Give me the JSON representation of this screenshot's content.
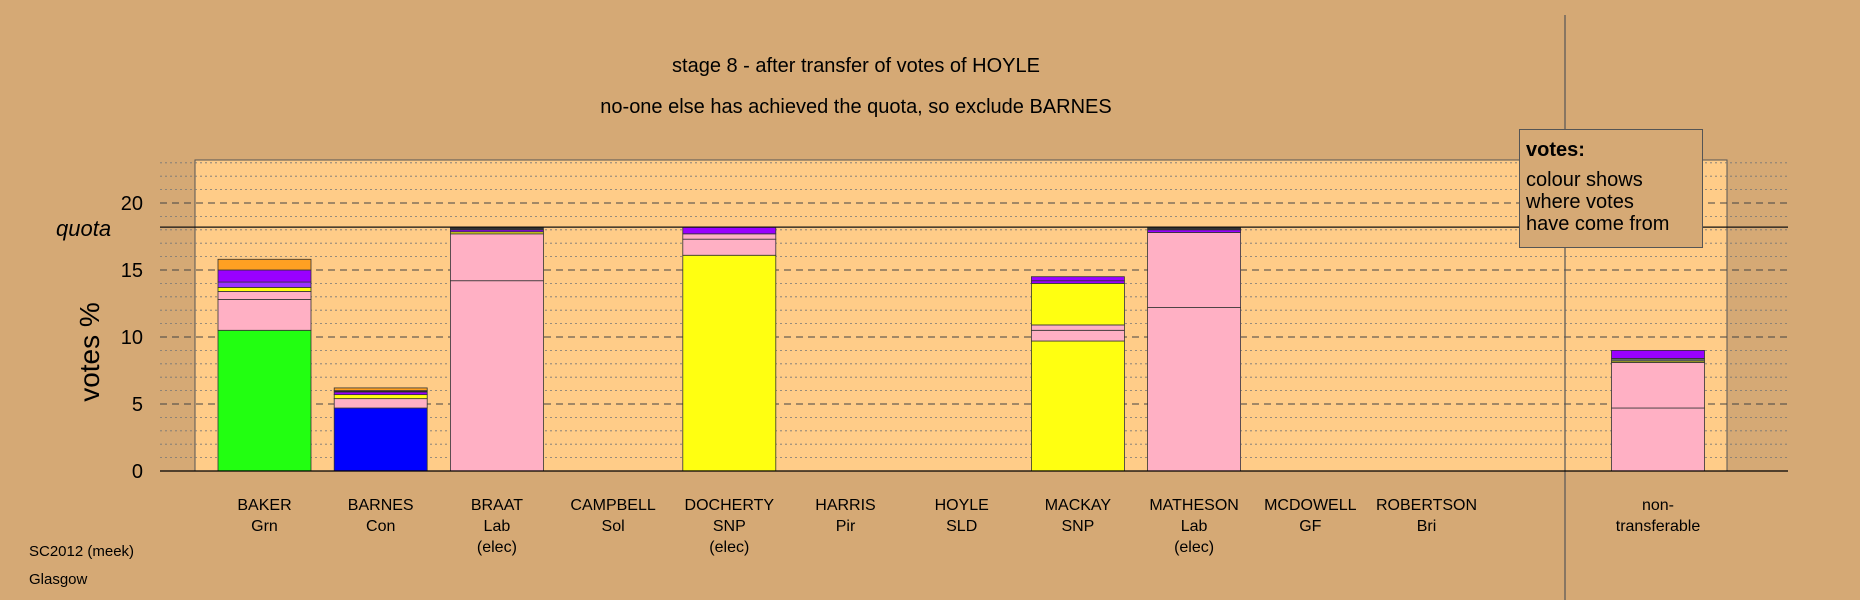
{
  "chart_data": {
    "type": "bar",
    "stacked": true,
    "title": "stage 8 - after transfer of votes of HOYLE",
    "subtitle": "no-one else has achieved the quota, so exclude BARNES",
    "ylabel": "votes %",
    "ylim": [
      0,
      23
    ],
    "yticks": [
      0,
      5,
      10,
      15,
      20
    ],
    "quota": 18.2,
    "quota_label": "quota",
    "categories": [
      {
        "name": "BAKER",
        "party": "Grn",
        "note": ""
      },
      {
        "name": "BARNES",
        "party": "Con",
        "note": ""
      },
      {
        "name": "BRAAT",
        "party": "Lab",
        "note": "(elec)"
      },
      {
        "name": "CAMPBELL",
        "party": "Sol",
        "note": ""
      },
      {
        "name": "DOCHERTY",
        "party": "SNP",
        "note": "(elec)"
      },
      {
        "name": "HARRIS",
        "party": "Pir",
        "note": ""
      },
      {
        "name": "HOYLE",
        "party": "SLD",
        "note": ""
      },
      {
        "name": "MACKAY",
        "party": "SNP",
        "note": ""
      },
      {
        "name": "MATHESON",
        "party": "Lab",
        "note": "(elec)"
      },
      {
        "name": "MCDOWELL",
        "party": "GF",
        "note": ""
      },
      {
        "name": "ROBERTSON",
        "party": "Bri",
        "note": ""
      },
      {
        "name": "non-",
        "party": "transferable",
        "note": ""
      }
    ],
    "stacks": [
      [
        {
          "v": 10.5,
          "color": "#22ff11"
        },
        {
          "v": 2.3,
          "color": "#ffb0c4"
        },
        {
          "v": 0.6,
          "color": "#ffb0c4"
        },
        {
          "v": 0.3,
          "color": "#ffff11"
        },
        {
          "v": 0.4,
          "color": "#9933ff"
        },
        {
          "v": 0.9,
          "color": "#9900ff"
        },
        {
          "v": 0.8,
          "color": "#ffa022"
        }
      ],
      [
        {
          "v": 4.7,
          "color": "#0000ff"
        },
        {
          "v": 0.7,
          "color": "#ffb0c4"
        },
        {
          "v": 0.3,
          "color": "#ffff11"
        },
        {
          "v": 0.2,
          "color": "#9900ff"
        },
        {
          "v": 0.1,
          "color": "#222222"
        },
        {
          "v": 0.2,
          "color": "#ffa022"
        }
      ],
      [
        {
          "v": 14.2,
          "color": "#ffb0c4"
        },
        {
          "v": 3.5,
          "color": "#ffb0c4"
        },
        {
          "v": 0.15,
          "color": "#ffff11"
        },
        {
          "v": 0.15,
          "color": "#9900ff"
        },
        {
          "v": 0.2,
          "color": "#333333"
        }
      ],
      [],
      [
        {
          "v": 16.1,
          "color": "#ffff11"
        },
        {
          "v": 1.2,
          "color": "#ffb0c4"
        },
        {
          "v": 0.4,
          "color": "#ffb0c4"
        },
        {
          "v": 0.5,
          "color": "#9900ff"
        }
      ],
      [],
      [],
      [
        {
          "v": 9.7,
          "color": "#ffff11"
        },
        {
          "v": 0.8,
          "color": "#ffb0c4"
        },
        {
          "v": 0.4,
          "color": "#ffb0c4"
        },
        {
          "v": 3.1,
          "color": "#ffff11"
        },
        {
          "v": 0.2,
          "color": "#9900ff"
        },
        {
          "v": 0.3,
          "color": "#9900ff"
        }
      ],
      [
        {
          "v": 12.2,
          "color": "#ffb0c4"
        },
        {
          "v": 5.6,
          "color": "#ffb0c4"
        },
        {
          "v": 0.2,
          "color": "#9900ff"
        },
        {
          "v": 0.2,
          "color": "#333333"
        }
      ],
      [],
      [],
      [
        {
          "v": 4.7,
          "color": "#ffb0c4"
        },
        {
          "v": 3.4,
          "color": "#ffb0c4"
        },
        {
          "v": 0.1,
          "color": "#ffff11"
        },
        {
          "v": 0.2,
          "color": "#666666"
        },
        {
          "v": 0.6,
          "color": "#9900ff"
        }
      ]
    ]
  },
  "legend": {
    "title": "votes:",
    "lines": [
      "colour shows",
      "where votes",
      "have come from"
    ]
  },
  "footer": {
    "line1": "SC2012 (meek)",
    "line2": "Glasgow"
  },
  "colors": {
    "page_bg": "#d5a975",
    "plot_bg": "#ffcc88"
  }
}
